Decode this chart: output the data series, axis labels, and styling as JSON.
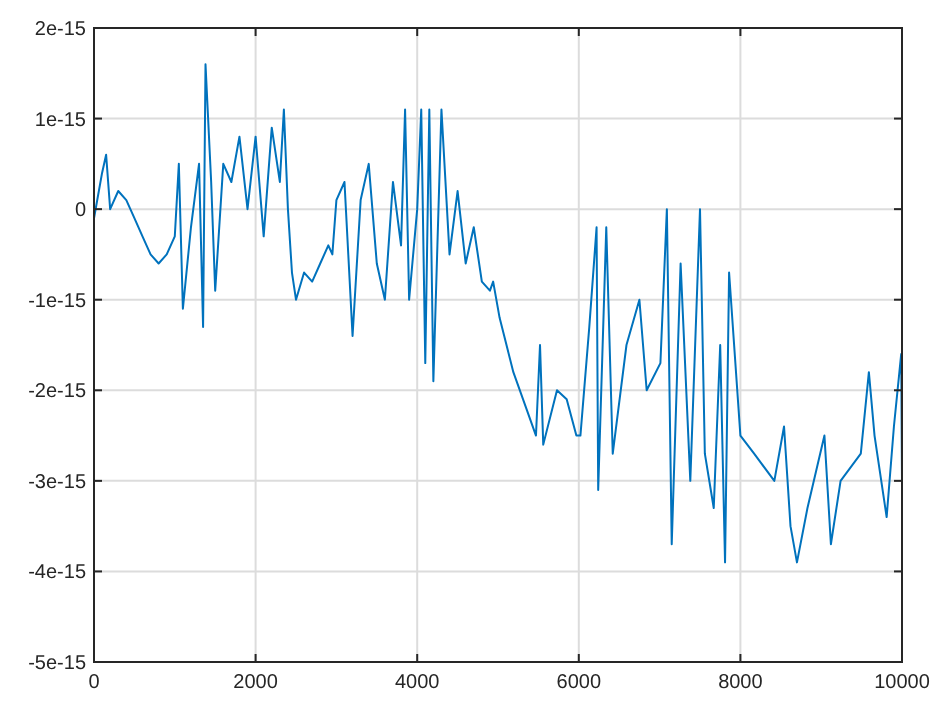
{
  "chart_data": {
    "type": "line",
    "xlim": [
      0,
      10000
    ],
    "ylim": [
      -5e-15,
      2e-15
    ],
    "xticks": [
      0,
      2000,
      4000,
      6000,
      8000,
      10000
    ],
    "yticks": [
      -5e-15,
      -4e-15,
      -3e-15,
      -2e-15,
      -1e-15,
      0,
      1e-15,
      2e-15
    ],
    "grid": true,
    "series": [
      {
        "color": "#0072bd",
        "x": [
          0,
          100,
          150,
          200,
          300,
          400,
          500,
          600,
          700,
          800,
          900,
          1000,
          1050,
          1100,
          1200,
          1300,
          1350,
          1380,
          1450,
          1500,
          1600,
          1700,
          1800,
          1900,
          2000,
          2100,
          2200,
          2300,
          2350,
          2400,
          2450,
          2500,
          2600,
          2700,
          2800,
          2900,
          2950,
          3000,
          3100,
          3200,
          3300,
          3400,
          3500,
          3600,
          3700,
          3800,
          3850,
          3900,
          4000,
          4050,
          4100,
          4150,
          4200,
          4250,
          4300,
          4400,
          4500,
          4600,
          4700,
          4800,
          4900,
          4940,
          5020,
          5190,
          5350,
          5470,
          5520,
          5560,
          5730,
          5850,
          5970,
          6020,
          6130,
          6220,
          6240,
          6340,
          6420,
          6590,
          6750,
          6840,
          7010,
          7090,
          7150,
          7260,
          7380,
          7500,
          7560,
          7670,
          7750,
          7810,
          7860,
          8000,
          8170,
          8420,
          8540,
          8620,
          8700,
          8830,
          9040,
          9120,
          9240,
          9490,
          9590,
          9660,
          9810,
          9900,
          9990,
          10000
        ],
        "values": [
          -1e-16,
          4e-16,
          6e-16,
          0,
          2e-16,
          1e-16,
          -1e-16,
          -3e-16,
          -5e-16,
          -6e-16,
          -5e-16,
          -3e-16,
          5e-16,
          -1.1e-15,
          -2e-16,
          5e-16,
          -1.3e-15,
          1.6e-15,
          3e-16,
          -9e-16,
          5e-16,
          3e-16,
          8e-16,
          0,
          8e-16,
          -3e-16,
          9e-16,
          3e-16,
          1.1e-15,
          0,
          -7e-16,
          -1e-15,
          -7e-16,
          -8e-16,
          -6e-16,
          -4e-16,
          -5e-16,
          1e-16,
          3e-16,
          -1.4e-15,
          1e-16,
          5e-16,
          -6e-16,
          -1e-15,
          3e-16,
          -4e-16,
          1.1e-15,
          -1e-15,
          0,
          1.1e-15,
          -1.7e-15,
          1.1e-15,
          -1.9e-15,
          -4e-16,
          1.1e-15,
          -5e-16,
          2e-16,
          -6e-16,
          -2e-16,
          -8e-16,
          -9e-16,
          -8e-16,
          -1.2e-15,
          -1.8e-15,
          -2.2e-15,
          -2.5e-15,
          -1.5e-15,
          -2.6e-15,
          -2e-15,
          -2.1e-15,
          -2.5e-15,
          -2.5e-15,
          -1.3e-15,
          -2e-16,
          -3.1e-15,
          -2e-16,
          -2.7e-15,
          -1.5e-15,
          -1e-15,
          -2e-15,
          -1.7e-15,
          0,
          -3.7e-15,
          -6e-16,
          -3e-15,
          0,
          -2.7e-15,
          -3.3e-15,
          -1.5e-15,
          -3.9e-15,
          -7e-16,
          -2.5e-15,
          -2.7e-15,
          -3e-15,
          -2.4e-15,
          -3.5e-15,
          -3.9e-15,
          -3.3e-15,
          -2.5e-15,
          -3.7e-15,
          -3e-15,
          -2.7e-15,
          -1.8e-15,
          -2.5e-15,
          -3.4e-15,
          -2.4e-15,
          -1.6e-15,
          -3e-15
        ]
      }
    ]
  }
}
